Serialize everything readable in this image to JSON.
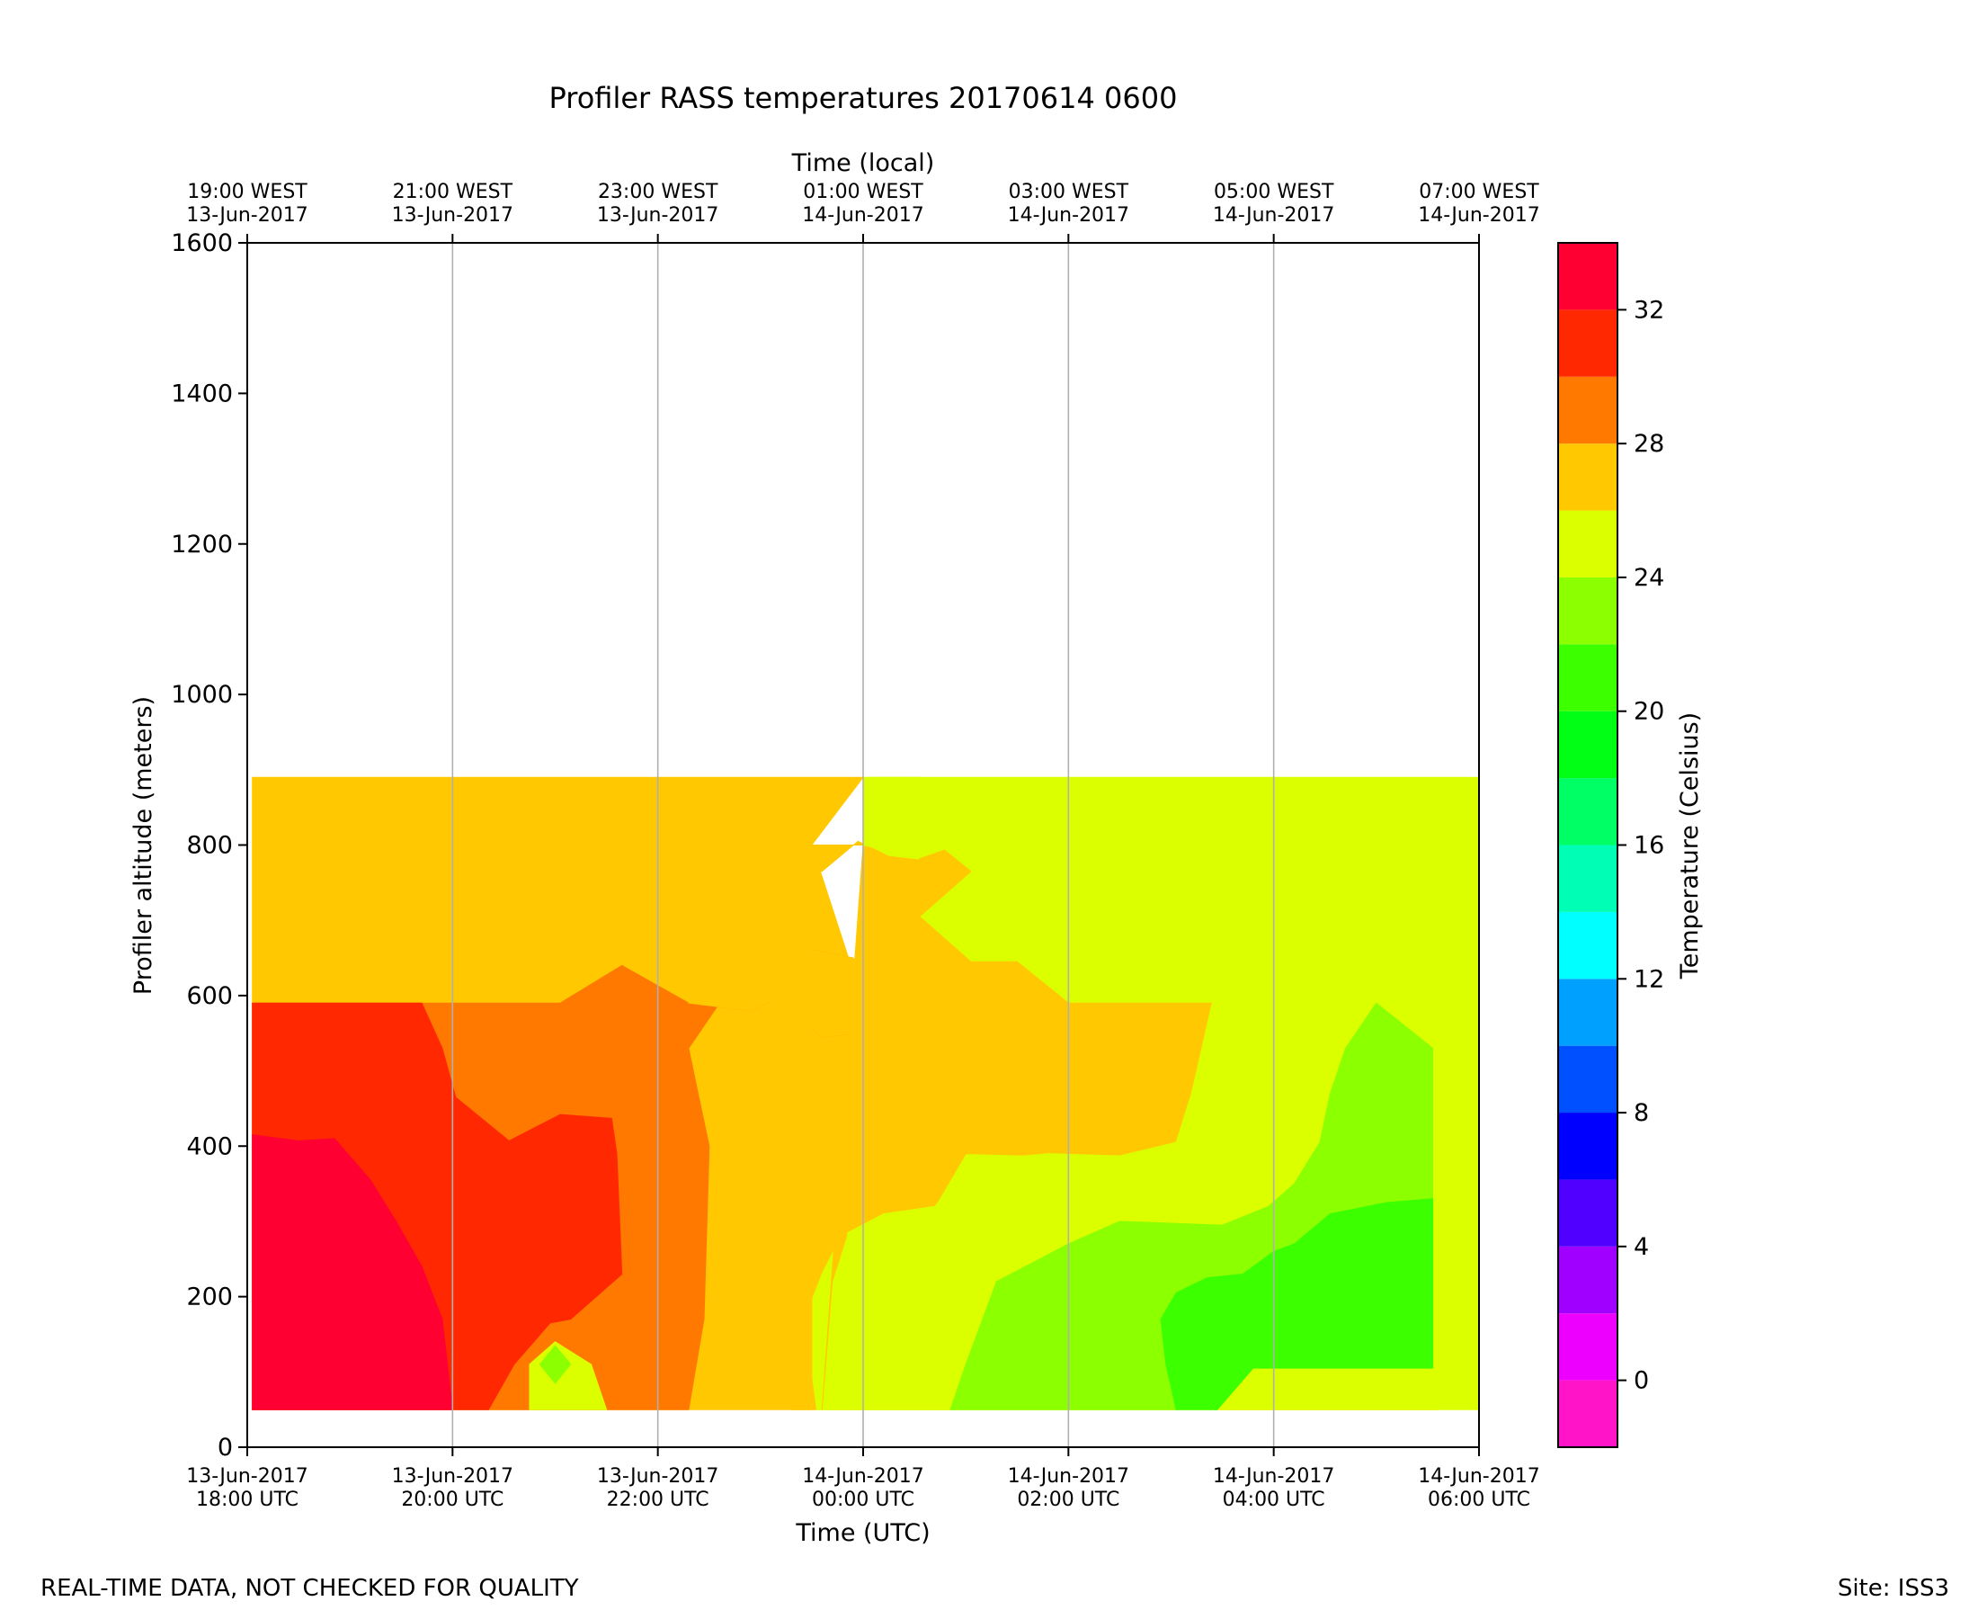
{
  "chart_data": {
    "type": "heatmap",
    "subtype": "filled-contour",
    "title": "Profiler RASS temperatures 20170614 0600",
    "xlabel": "Time (UTC)",
    "x2label": "Time (local)",
    "ylabel": "Profiler altitude (meters)",
    "colorbar_label": "Temperature (Celsius)",
    "footer_left": "REAL-TIME DATA, NOT CHECKED FOR QUALITY",
    "footer_right": "Site: ISS3",
    "xlim_hours": [
      18,
      30
    ],
    "ylim": [
      0,
      1600
    ],
    "grid": "vertical at x ticks",
    "x_ticks": [
      {
        "hour": 18,
        "line1": "13-Jun-2017",
        "line2": "18:00 UTC"
      },
      {
        "hour": 20,
        "line1": "13-Jun-2017",
        "line2": "20:00 UTC"
      },
      {
        "hour": 22,
        "line1": "13-Jun-2017",
        "line2": "22:00 UTC"
      },
      {
        "hour": 24,
        "line1": "14-Jun-2017",
        "line2": "00:00 UTC"
      },
      {
        "hour": 26,
        "line1": "14-Jun-2017",
        "line2": "02:00 UTC"
      },
      {
        "hour": 28,
        "line1": "14-Jun-2017",
        "line2": "04:00 UTC"
      },
      {
        "hour": 30,
        "line1": "14-Jun-2017",
        "line2": "06:00 UTC"
      }
    ],
    "x2_ticks": [
      {
        "hour": 18,
        "line1": "19:00 WEST",
        "line2": "13-Jun-2017"
      },
      {
        "hour": 20,
        "line1": "21:00 WEST",
        "line2": "13-Jun-2017"
      },
      {
        "hour": 22,
        "line1": "23:00 WEST",
        "line2": "13-Jun-2017"
      },
      {
        "hour": 24,
        "line1": "01:00 WEST",
        "line2": "14-Jun-2017"
      },
      {
        "hour": 26,
        "line1": "03:00 WEST",
        "line2": "14-Jun-2017"
      },
      {
        "hour": 28,
        "line1": "05:00 WEST",
        "line2": "14-Jun-2017"
      },
      {
        "hour": 30,
        "line1": "07:00 WEST",
        "line2": "14-Jun-2017"
      }
    ],
    "y_ticks": [
      "0",
      "200",
      "400",
      "600",
      "800",
      "1000",
      "1200",
      "1400",
      "1600"
    ],
    "colorbar_range": [
      -2,
      34
    ],
    "colorbar_ticks": [
      "0",
      "4",
      "8",
      "12",
      "16",
      "20",
      "24",
      "28",
      "32"
    ],
    "levels": [
      {
        "range": [
          -2,
          0
        ],
        "color": "#ff14c8"
      },
      {
        "range": [
          0,
          2
        ],
        "color": "#ee00ff"
      },
      {
        "range": [
          2,
          4
        ],
        "color": "#a000ff"
      },
      {
        "range": [
          4,
          6
        ],
        "color": "#5000ff"
      },
      {
        "range": [
          6,
          8
        ],
        "color": "#0000ff"
      },
      {
        "range": [
          8,
          10
        ],
        "color": "#0050ff"
      },
      {
        "range": [
          10,
          12
        ],
        "color": "#00a0ff"
      },
      {
        "range": [
          12,
          14
        ],
        "color": "#00ffff"
      },
      {
        "range": [
          14,
          16
        ],
        "color": "#00ffb4"
      },
      {
        "range": [
          16,
          18
        ],
        "color": "#00ff64"
      },
      {
        "range": [
          18,
          20
        ],
        "color": "#00ff14"
      },
      {
        "range": [
          20,
          22
        ],
        "color": "#3cff00"
      },
      {
        "range": [
          22,
          24
        ],
        "color": "#8cff00"
      },
      {
        "range": [
          24,
          26
        ],
        "color": "#dcff00"
      },
      {
        "range": [
          26,
          28
        ],
        "color": "#ffc800"
      },
      {
        "range": [
          28,
          30
        ],
        "color": "#ff7800"
      },
      {
        "range": [
          30,
          32
        ],
        "color": "#ff2800"
      },
      {
        "range": [
          32,
          34
        ],
        "color": "#ff0032"
      }
    ],
    "regions": [
      {
        "level": "26-28",
        "color": "#ffc800",
        "points": [
          [
            18.05,
            50
          ],
          [
            29.6,
            50
          ],
          [
            29.6,
            590
          ],
          [
            24,
            590
          ],
          [
            23.5,
            800
          ],
          [
            24,
            890
          ],
          [
            18.05,
            890
          ]
        ]
      },
      {
        "level": "28-30",
        "color": "#ff7800",
        "points": [
          [
            18.05,
            50
          ],
          [
            22.3,
            50
          ],
          [
            22.45,
            170
          ],
          [
            22.5,
            400
          ],
          [
            22.4,
            465
          ],
          [
            22.3,
            530
          ],
          [
            22.7,
            610
          ],
          [
            23.15,
            670
          ],
          [
            23.9,
            650
          ],
          [
            24.3,
            590
          ],
          [
            23.95,
            550
          ],
          [
            23.6,
            545
          ],
          [
            23.2,
            600
          ],
          [
            22.9,
            580
          ],
          [
            22.3,
            590
          ],
          [
            21.65,
            640
          ],
          [
            21.05,
            590
          ],
          [
            18.05,
            590
          ]
        ]
      },
      {
        "level": "30-32",
        "color": "#ff2800",
        "points": [
          [
            18.05,
            50
          ],
          [
            20.35,
            50
          ],
          [
            20.6,
            110
          ],
          [
            20.95,
            165
          ],
          [
            21.15,
            170
          ],
          [
            21.65,
            230
          ],
          [
            21.6,
            390
          ],
          [
            21.55,
            437
          ],
          [
            21.05,
            442
          ],
          [
            20.55,
            407
          ],
          [
            20.03,
            465
          ],
          [
            19.9,
            530
          ],
          [
            19.7,
            590
          ],
          [
            18.05,
            590
          ]
        ]
      },
      {
        "level": "32-34",
        "color": "#ff0032",
        "points": [
          [
            18.05,
            50
          ],
          [
            20.0,
            50
          ],
          [
            19.9,
            170
          ],
          [
            19.7,
            240
          ],
          [
            19.45,
            300
          ],
          [
            19.2,
            355
          ],
          [
            18.85,
            410
          ],
          [
            18.5,
            407
          ],
          [
            18.05,
            415
          ]
        ]
      },
      {
        "level": "24-26",
        "color": "#dcff00",
        "points": [
          [
            20.75,
            50
          ],
          [
            20.75,
            110
          ],
          [
            21.0,
            140
          ],
          [
            21.35,
            110
          ],
          [
            21.5,
            50
          ]
        ]
      },
      {
        "level": "22-24",
        "color": "#8cff00",
        "points": [
          [
            21.0,
            85
          ],
          [
            21.15,
            110
          ],
          [
            21.0,
            135
          ],
          [
            20.85,
            110
          ]
        ]
      },
      {
        "level": "24-26",
        "color": "#dcff00",
        "points": [
          [
            23.6,
            50
          ],
          [
            30,
            50
          ],
          [
            30,
            890
          ],
          [
            24,
            890
          ],
          [
            24.0,
            800
          ],
          [
            24.55,
            783
          ],
          [
            24.8,
            795
          ],
          [
            24.55,
            830
          ],
          [
            24.55,
            890
          ],
          [
            24.05,
            890
          ],
          [
            24.05,
            800
          ],
          [
            24.05,
            650
          ],
          [
            23.9,
            545
          ],
          [
            23.8,
            285
          ],
          [
            23.6,
            230
          ],
          [
            23.43,
            170
          ],
          [
            23.55,
            50
          ]
        ]
      },
      {
        "level": "26-28",
        "color": "#ffc800",
        "points": [
          [
            24.0,
            800
          ],
          [
            23.5,
            800
          ],
          [
            23.5,
            50
          ],
          [
            23.3,
            50
          ],
          [
            23.2,
            80
          ],
          [
            23.0,
            120
          ],
          [
            22.9,
            200
          ],
          [
            22.9,
            300
          ],
          [
            22.9,
            407
          ],
          [
            22.8,
            440
          ],
          [
            23.05,
            520
          ],
          [
            23.15,
            670
          ],
          [
            23.9,
            650
          ],
          [
            24.3,
            590
          ],
          [
            23.95,
            550
          ],
          [
            23.6,
            545
          ],
          [
            23.2,
            600
          ],
          [
            22.9,
            580
          ],
          [
            22.3,
            590
          ],
          [
            22.3,
            705
          ],
          [
            22.3,
            705
          ],
          [
            22.7,
            705
          ],
          [
            23.1,
            765
          ],
          [
            23.6,
            765
          ],
          [
            23.95,
            805
          ],
          [
            24.25,
            785
          ],
          [
            24.55,
            780
          ],
          [
            24.55,
            820
          ],
          [
            25.05,
            765
          ],
          [
            24.55,
            705
          ],
          [
            25.05,
            645
          ],
          [
            25.5,
            645
          ],
          [
            26.0,
            590
          ],
          [
            27.4,
            590
          ],
          [
            27.25,
            470
          ],
          [
            27.1,
            405
          ],
          [
            26.5,
            385
          ],
          [
            25.0,
            390
          ],
          [
            24.7,
            320
          ],
          [
            24.2,
            310
          ],
          [
            23.85,
            285
          ],
          [
            23.7,
            220
          ],
          [
            23.6,
            50
          ]
        ]
      },
      {
        "level": "24-26",
        "color": "#dcff00",
        "points": [
          [
            24.05,
            830
          ],
          [
            24.0,
            800
          ],
          [
            24.55,
            783
          ],
          [
            24.8,
            795
          ],
          [
            24.55,
            830
          ],
          [
            24.55,
            890
          ],
          [
            24.05,
            890
          ]
        ]
      },
      {
        "level": "24-26",
        "color": "#dcff00",
        "points": [
          [
            27.4,
            590
          ],
          [
            29.0,
            590
          ],
          [
            28.7,
            530
          ],
          [
            28.55,
            470
          ],
          [
            28.45,
            405
          ],
          [
            27.9,
            320
          ],
          [
            27.5,
            290
          ],
          [
            26.5,
            300
          ],
          [
            26.0,
            270
          ],
          [
            25.3,
            220
          ],
          [
            24.85,
            50
          ],
          [
            23.95,
            50
          ],
          [
            23.75,
            120
          ],
          [
            23.7,
            170
          ],
          [
            23.8,
            220
          ],
          [
            23.85,
            285
          ],
          [
            24.2,
            310
          ],
          [
            24.7,
            320
          ],
          [
            25.05,
            380
          ],
          [
            25.8,
            390
          ],
          [
            26.5,
            387
          ],
          [
            27.05,
            405
          ],
          [
            27.2,
            470
          ],
          [
            27.3,
            530
          ]
        ]
      },
      {
        "level": "22-24",
        "color": "#8cff00",
        "points": [
          [
            24.85,
            50
          ],
          [
            27.05,
            50
          ],
          [
            27.45,
            110
          ],
          [
            27.75,
            100
          ],
          [
            27.95,
            160
          ],
          [
            28.0,
            230
          ],
          [
            28.4,
            270
          ],
          [
            28.7,
            310
          ],
          [
            29.55,
            330
          ],
          [
            29.55,
            530
          ],
          [
            29.0,
            590
          ],
          [
            28.7,
            530
          ],
          [
            28.55,
            470
          ],
          [
            28.45,
            405
          ],
          [
            28.2,
            350
          ],
          [
            27.95,
            320
          ],
          [
            27.5,
            295
          ],
          [
            26.5,
            300
          ],
          [
            26.0,
            270
          ],
          [
            25.3,
            220
          ],
          [
            25.0,
            110
          ]
        ]
      },
      {
        "level": "20-22",
        "color": "#3cff00",
        "points": [
          [
            27.05,
            50
          ],
          [
            27.45,
            50
          ],
          [
            27.8,
            105
          ],
          [
            29.55,
            105
          ],
          [
            29.55,
            330
          ],
          [
            29.1,
            325
          ],
          [
            28.55,
            310
          ],
          [
            28.2,
            270
          ],
          [
            28.0,
            260
          ],
          [
            27.7,
            230
          ],
          [
            27.35,
            225
          ],
          [
            27.05,
            205
          ],
          [
            26.9,
            170
          ],
          [
            26.95,
            110
          ]
        ]
      }
    ]
  }
}
